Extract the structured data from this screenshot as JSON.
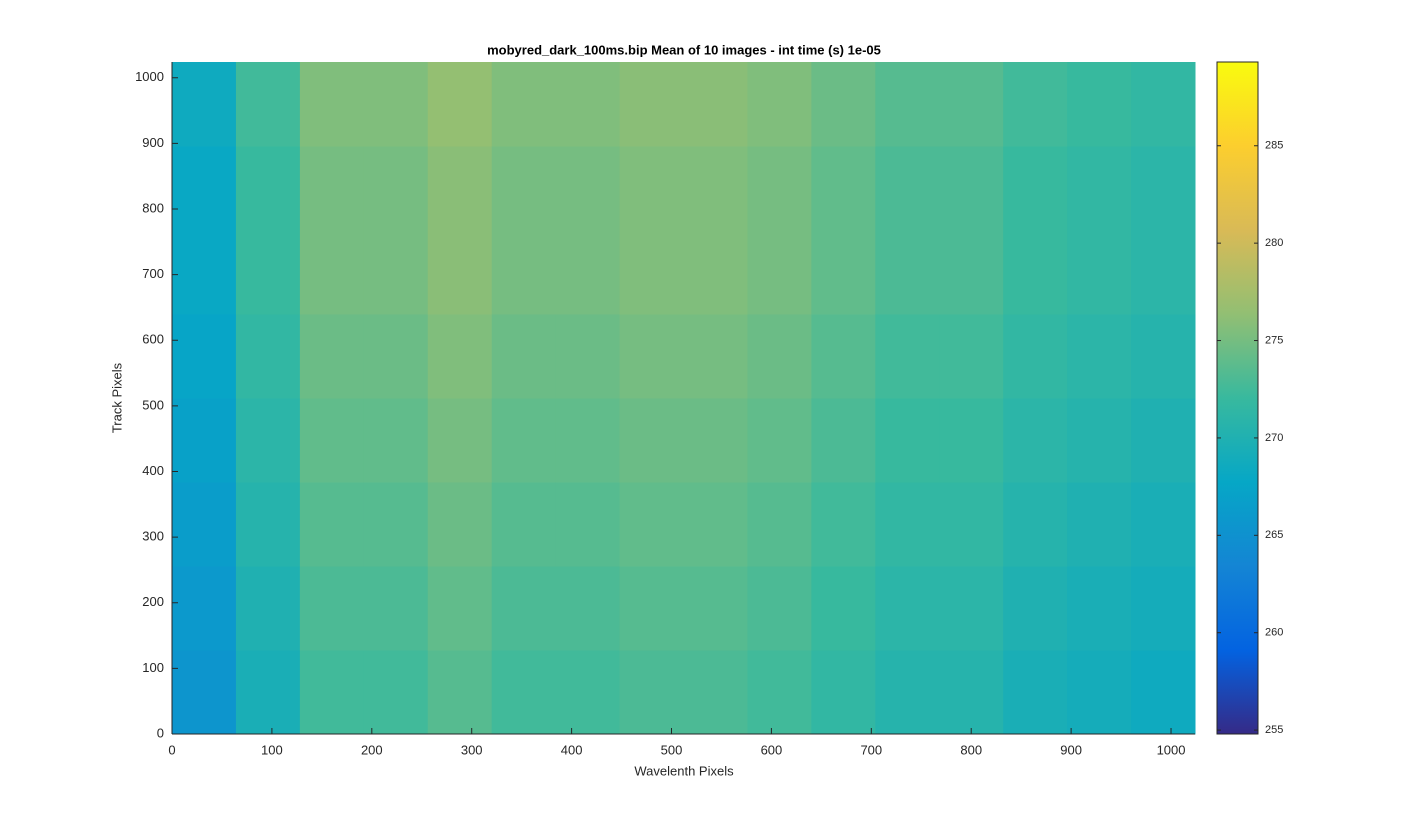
{
  "chart_data": {
    "type": "heatmap",
    "title": "mobyred_dark_100ms.bip  Mean of 10 images - int time (s) 1e-05",
    "x_label": "Wavelenth Pixels",
    "y_label": "Track Pixels",
    "x": [
      32,
      96,
      160,
      224,
      288,
      352,
      416,
      480,
      544,
      608,
      672,
      736,
      800,
      864,
      928,
      992
    ],
    "y": [
      64,
      192,
      320,
      448,
      576,
      704,
      832,
      960
    ],
    "values": [
      [
        265.5,
        269.5,
        272.5,
        272.5,
        273.5,
        272.5,
        272.5,
        273,
        273,
        272.5,
        271.5,
        270.5,
        270.5,
        269.5,
        269,
        268.5
      ],
      [
        266,
        270,
        273,
        273,
        274,
        273,
        273,
        273.5,
        273.5,
        273,
        272,
        271,
        271,
        270,
        269.5,
        269
      ],
      [
        266.5,
        270.5,
        273.5,
        273.5,
        274.5,
        273.5,
        273.5,
        274,
        274,
        273.5,
        272.5,
        271.5,
        271.5,
        270.5,
        270,
        269.5
      ],
      [
        267,
        271,
        274,
        274,
        275,
        274,
        274,
        274.5,
        274.5,
        274,
        273,
        272,
        272,
        271,
        270.5,
        270
      ],
      [
        267.5,
        271.5,
        274.5,
        274.5,
        275.5,
        274.5,
        274.5,
        275,
        275,
        274.5,
        273.5,
        272.5,
        272.5,
        271.5,
        271,
        270.5
      ],
      [
        268,
        272,
        275,
        275,
        276,
        275,
        275,
        275.5,
        275.5,
        275,
        274,
        273,
        273,
        272,
        271.5,
        271
      ],
      [
        268,
        272,
        275,
        275,
        276,
        275,
        275,
        275.5,
        275.5,
        275,
        274,
        273,
        273,
        272,
        271.5,
        271
      ],
      [
        268.5,
        272.5,
        275.5,
        275.5,
        276.5,
        275.5,
        275.5,
        276,
        276,
        275.5,
        274.5,
        273.5,
        273.5,
        272.5,
        272,
        271.5
      ]
    ],
    "xlim": [
      0,
      1024
    ],
    "xticks": [
      0,
      100,
      200,
      300,
      400,
      500,
      600,
      700,
      800,
      900,
      1000
    ],
    "ylim": [
      0,
      1024
    ],
    "yticks": [
      0,
      100,
      200,
      300,
      400,
      500,
      600,
      700,
      800,
      900,
      1000
    ],
    "clim": [
      254.8,
      289.3
    ],
    "cticks": [
      255,
      260,
      265,
      270,
      275,
      280,
      285
    ],
    "colormap": [
      "#352a87",
      "#0363e1",
      "#1485d4",
      "#06a7c6",
      "#38b99e",
      "#92bf73",
      "#d9ba56",
      "#fcce2e",
      "#f9fb0e"
    ]
  }
}
